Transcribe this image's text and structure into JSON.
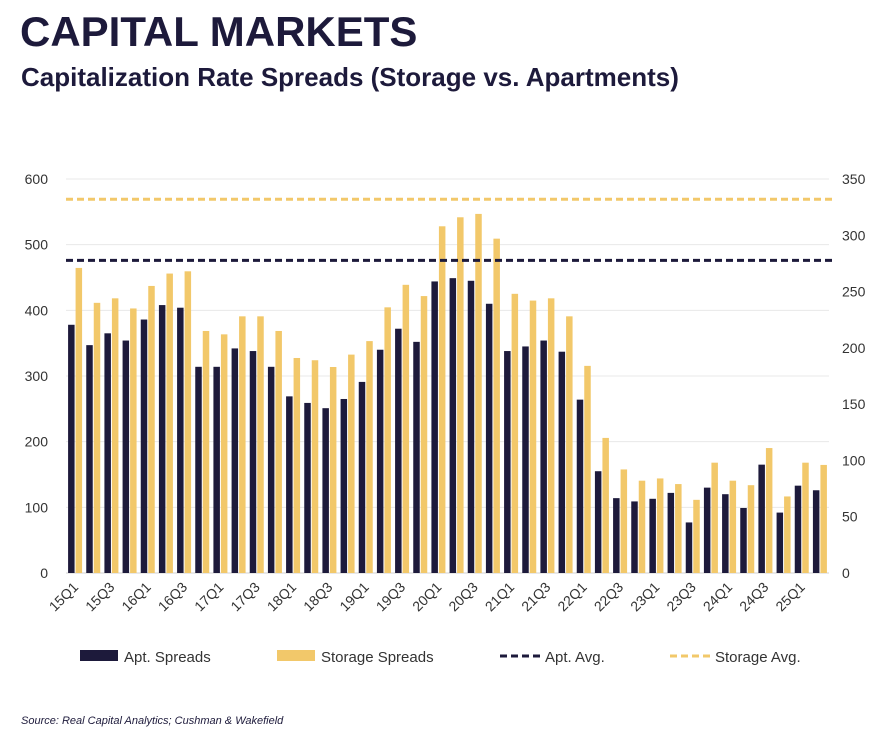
{
  "header": {
    "title": "CAPITAL MARKETS",
    "subtitle": "Capitalization Rate Spreads (Storage vs. Apartments)"
  },
  "footer": {
    "source": "Source: Real Capital Analytics; Cushman & Wakefield"
  },
  "colors": {
    "apt": "#1d1a3b",
    "storage": "#f2c86a",
    "grid": "#e8e8e8",
    "axis_text": "#333333"
  },
  "chart_data": {
    "type": "bar",
    "title": "Capitalization Rate Spreads (Storage vs. Apartments)",
    "categories": [
      "15Q1",
      "15Q2",
      "15Q3",
      "15Q4",
      "16Q1",
      "16Q2",
      "16Q3",
      "16Q4",
      "17Q1",
      "17Q2",
      "17Q3",
      "17Q4",
      "18Q1",
      "18Q2",
      "18Q3",
      "18Q4",
      "19Q1",
      "19Q2",
      "19Q3",
      "19Q4",
      "20Q1",
      "20Q2",
      "20Q3",
      "20Q4",
      "21Q1",
      "21Q2",
      "21Q3",
      "21Q4",
      "22Q1",
      "22Q2",
      "22Q3",
      "22Q4",
      "23Q1",
      "23Q2",
      "23Q3",
      "23Q4",
      "24Q1",
      "24Q2",
      "24Q3",
      "24Q4",
      "25Q1",
      "25Q2"
    ],
    "tick_labels": [
      "15Q1",
      "",
      "15Q3",
      "",
      "16Q1",
      "",
      "16Q3",
      "",
      "17Q1",
      "",
      "17Q3",
      "",
      "18Q1",
      "",
      "18Q3",
      "",
      "19Q1",
      "",
      "19Q3",
      "",
      "20Q1",
      "",
      "20Q3",
      "",
      "21Q1",
      "",
      "21Q3",
      "",
      "22Q1",
      "",
      "22Q3",
      "",
      "23Q1",
      "",
      "23Q3",
      "",
      "24Q1",
      "",
      "24Q3",
      "",
      "25Q1",
      ""
    ],
    "series": [
      {
        "name": "Apt. Spreads",
        "axis": "left",
        "values": [
          378,
          347,
          365,
          354,
          386,
          408,
          404,
          314,
          314,
          342,
          338,
          314,
          269,
          259,
          251,
          265,
          291,
          340,
          372,
          352,
          444,
          449,
          445,
          410,
          338,
          345,
          354,
          337,
          264,
          155,
          114,
          109,
          113,
          122,
          77,
          130,
          120,
          99,
          165,
          92,
          133,
          126
        ]
      },
      {
        "name": "Storage Spreads",
        "axis": "right",
        "values": [
          271,
          240,
          244,
          235,
          255,
          266,
          268,
          215,
          212,
          228,
          228,
          215,
          191,
          189,
          183,
          194,
          206,
          236,
          256,
          246,
          308,
          316,
          319,
          297,
          248,
          242,
          244,
          228,
          184,
          120,
          92,
          82,
          84,
          79,
          65,
          98,
          82,
          78,
          111,
          68,
          98,
          96
        ]
      }
    ],
    "reference_lines": [
      {
        "name": "Apt. Avg.",
        "axis": "left",
        "value": 476,
        "style": "dashed"
      },
      {
        "name": "Storage Avg.",
        "axis": "right",
        "value": 332,
        "style": "dashed"
      }
    ],
    "left_axis": {
      "min": 0,
      "max": 600,
      "step": 100,
      "ticks": [
        "0",
        "100",
        "200",
        "300",
        "400",
        "500",
        "600"
      ]
    },
    "right_axis": {
      "min": 0,
      "max": 350,
      "step": 50,
      "ticks": [
        "0",
        "50",
        "100",
        "150",
        "200",
        "250",
        "300",
        "350"
      ]
    },
    "legend": {
      "placement": "bottom",
      "items": [
        "Apt. Spreads",
        "Storage Spreads",
        "Apt. Avg.",
        "Storage Avg."
      ]
    },
    "grid": true
  }
}
